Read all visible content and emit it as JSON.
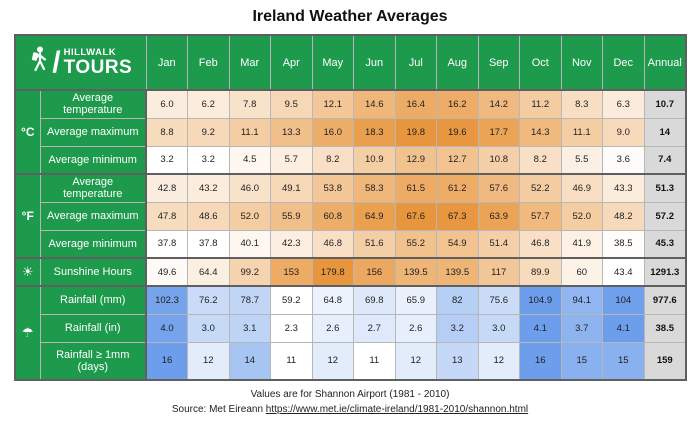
{
  "chart_data": {
    "type": "table",
    "title": "Ireland Weather Averages",
    "categories": [
      "Jan",
      "Feb",
      "Mar",
      "Apr",
      "May",
      "Jun",
      "Jul",
      "Aug",
      "Sep",
      "Oct",
      "Nov",
      "Dec"
    ],
    "annual_label": "Annual",
    "groups": [
      {
        "unit_label": "°C",
        "icon_name": "celsius-label",
        "scale": "orange",
        "normalize": "group",
        "rows": [
          {
            "label": "Average temperature",
            "values": [
              "6.0",
              "6.2",
              "7.8",
              "9.5",
              "12.1",
              "14.6",
              "16.4",
              "16.2",
              "14.2",
              "11.2",
              "8.3",
              "6.3"
            ],
            "annual": "10.7"
          },
          {
            "label": "Average maximum",
            "values": [
              "8.8",
              "9.2",
              "11.1",
              "13.3",
              "16.0",
              "18.3",
              "19.8",
              "19.6",
              "17.7",
              "14.3",
              "11.1",
              "9.0"
            ],
            "annual": "14"
          },
          {
            "label": "Average minimum",
            "values": [
              "3.2",
              "3.2",
              "4.5",
              "5.7",
              "8.2",
              "10.9",
              "12.9",
              "12.7",
              "10.8",
              "8.2",
              "5.5",
              "3.6"
            ],
            "annual": "7.4"
          }
        ]
      },
      {
        "unit_label": "°F",
        "icon_name": "fahrenheit-label",
        "scale": "orange",
        "normalize": "group",
        "rows": [
          {
            "label": "Average temperature",
            "values": [
              "42.8",
              "43.2",
              "46.0",
              "49.1",
              "53.8",
              "58.3",
              "61.5",
              "61.2",
              "57.6",
              "52.2",
              "46.9",
              "43.3"
            ],
            "annual": "51.3"
          },
          {
            "label": "Average maximum",
            "values": [
              "47.8",
              "48.6",
              "52.0",
              "55.9",
              "60.8",
              "64.9",
              "67.6",
              "67.3",
              "63.9",
              "57.7",
              "52.0",
              "48.2"
            ],
            "annual": "57.2"
          },
          {
            "label": "Average minimum",
            "values": [
              "37.8",
              "37.8",
              "40.1",
              "42.3",
              "46.8",
              "51.6",
              "55.2",
              "54.9",
              "51.4",
              "46.8",
              "41.9",
              "38.5"
            ],
            "annual": "45.3"
          }
        ]
      },
      {
        "unit_label": "☀",
        "icon_name": "sun-icon",
        "scale": "orange",
        "normalize": "row",
        "rows": [
          {
            "label": "Sunshine Hours",
            "values": [
              "49.6",
              "64.4",
              "99.2",
              "153",
              "179.8",
              "156",
              "139.5",
              "139.5",
              "117",
              "89.9",
              "60",
              "43.4"
            ],
            "annual": "1291.3"
          }
        ]
      },
      {
        "unit_label": "☂",
        "icon_name": "umbrella-icon",
        "scale": "blue",
        "normalize": "row",
        "rows": [
          {
            "label": "Rainfall (mm)",
            "values": [
              "102.3",
              "76.2",
              "78.7",
              "59.2",
              "64.8",
              "69.8",
              "65.9",
              "82",
              "75.6",
              "104.9",
              "94.1",
              "104"
            ],
            "annual": "977.6"
          },
          {
            "label": "Rainfall (in)",
            "values": [
              "4.0",
              "3.0",
              "3.1",
              "2.3",
              "2.6",
              "2.7",
              "2.6",
              "3.2",
              "3.0",
              "4.1",
              "3.7",
              "4.1"
            ],
            "annual": "38.5"
          },
          {
            "label": "Rainfall ≥ 1mm (days)",
            "values": [
              "16",
              "12",
              "14",
              "11",
              "12",
              "11",
              "12",
              "13",
              "12",
              "16",
              "15",
              "15"
            ],
            "annual": "159"
          }
        ]
      }
    ]
  },
  "logo": {
    "line1": "HILLWALK",
    "line2": "TOURS",
    "slash": "/"
  },
  "colors": {
    "green": "#1E9A4D",
    "orange": "#E8963E",
    "blue": "#6D9EEB",
    "annual_bg": "#D9D9D9",
    "border_dark": "#5F5F5F",
    "grid": "#B7B7B7"
  },
  "footer": {
    "line1": "Values are for Shannon Airport (1981 - 2010)",
    "source_prefix": "Source: Met Eireann ",
    "link_text": "https://www.met.ie/climate-ireland/1981-2010/shannon.html"
  }
}
